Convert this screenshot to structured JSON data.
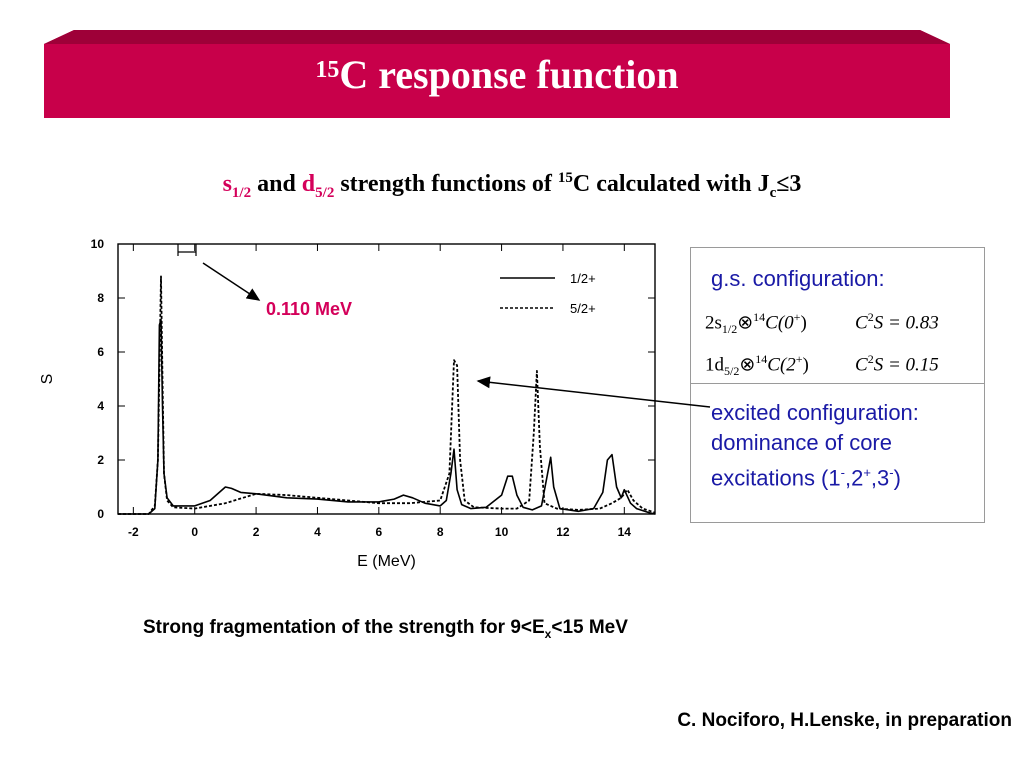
{
  "title": {
    "sup": "15",
    "text": "C response function"
  },
  "subtitle": {
    "s": "s",
    "s_sub": "1/2",
    "and": " and ",
    "d": "d",
    "d_sub": "5/2",
    "mid": " strength functions of ",
    "sup15": "15",
    "tail": "C calculated with  J",
    "jc_sub": "c",
    "leq3": "≤3"
  },
  "annotation": {
    "label": "0.110 MeV"
  },
  "box": {
    "gs_title": "g.s. configuration:",
    "row1_left": "2s",
    "row1_sub": "1/2",
    "row1_core": "⊗",
    "row1_sup": "14",
    "row1_c": "C(0",
    "row1_par": "+",
    "row1_close": ")",
    "row1_cs": "C",
    "row1_cs_sup": "2",
    "row1_cs_val": "S = 0.83",
    "row2_left": "1d",
    "row2_sub": "5/2",
    "row2_core": "⊗",
    "row2_sup": "14",
    "row2_c": "C(2",
    "row2_par": "+",
    "row2_close": ")",
    "row2_cs": "C",
    "row2_cs_sup": "2",
    "row2_cs_val": "S = 0.15",
    "exc_line1": "excited configuration:",
    "exc_line2": "dominance of core",
    "exc_line3_a": "excitations (1",
    "m1": "-",
    "exc_line3_b": ",2",
    "p2": "+",
    "exc_line3_c": ",3",
    "m3": "-",
    "exc_line3_d": ")"
  },
  "fragmentation": {
    "a": "Strong fragmentation of the strength for 9<E",
    "sub": "x",
    "b": "<15 MeV"
  },
  "credit": "C. Nociforo, H.Lenske, in preparation",
  "colors": {
    "banner": "#c8004a",
    "accent": "#d4005a",
    "blue": "#1a1aa6"
  },
  "chart_data": {
    "type": "line",
    "xlabel": "E (MeV)",
    "ylabel": "S",
    "xlim": [
      -2.5,
      15
    ],
    "ylim": [
      0,
      10
    ],
    "xticks": [
      -2,
      0,
      2,
      4,
      6,
      8,
      10,
      12,
      14
    ],
    "yticks": [
      0,
      2,
      4,
      6,
      8,
      10
    ],
    "legend_position": "top-right",
    "series": [
      {
        "name": "1/2+",
        "style": "solid",
        "x": [
          -2.5,
          -1.5,
          -1.3,
          -1.2,
          -1.15,
          -1.1,
          -1.05,
          -1.0,
          -0.9,
          -0.7,
          0,
          0.5,
          0.8,
          1.0,
          1.2,
          1.5,
          2,
          3,
          4,
          5,
          6,
          6.5,
          6.8,
          7.1,
          7.5,
          8.0,
          8.2,
          8.35,
          8.45,
          8.55,
          8.7,
          9.0,
          9.5,
          10.0,
          10.2,
          10.35,
          10.5,
          10.7,
          11.0,
          11.3,
          11.5,
          11.6,
          11.7,
          11.9,
          12.5,
          13.0,
          13.3,
          13.45,
          13.6,
          13.75,
          13.9,
          14.0,
          14.2,
          14.4,
          14.8,
          15.0
        ],
        "y": [
          0,
          0,
          0.2,
          2.0,
          7.0,
          7.2,
          4.0,
          1.5,
          0.6,
          0.3,
          0.3,
          0.5,
          0.8,
          1.0,
          0.95,
          0.8,
          0.75,
          0.6,
          0.55,
          0.45,
          0.45,
          0.55,
          0.7,
          0.6,
          0.4,
          0.3,
          0.5,
          1.5,
          2.4,
          0.9,
          0.35,
          0.2,
          0.25,
          0.7,
          1.4,
          1.4,
          0.7,
          0.25,
          0.15,
          0.3,
          1.5,
          2.1,
          1.0,
          0.2,
          0.1,
          0.2,
          0.8,
          2.0,
          2.2,
          1.0,
          0.6,
          0.9,
          0.4,
          0.2,
          0.05,
          0
        ]
      },
      {
        "name": "5/2+",
        "style": "dashed",
        "x": [
          -2.5,
          -1.5,
          -1.3,
          -1.2,
          -1.1,
          -1.05,
          -1.0,
          -0.9,
          -0.7,
          0,
          1,
          2,
          3,
          4,
          5,
          6,
          7,
          8.0,
          8.3,
          8.45,
          8.55,
          8.65,
          8.8,
          9.1,
          10,
          10.5,
          10.9,
          11.05,
          11.15,
          11.25,
          11.4,
          11.8,
          12.5,
          13.2,
          13.6,
          13.9,
          14.1,
          14.3,
          14.6,
          15.0
        ],
        "y": [
          0,
          0,
          0.3,
          2.0,
          8.8,
          5.0,
          1.5,
          0.5,
          0.25,
          0.2,
          0.4,
          0.75,
          0.7,
          0.6,
          0.5,
          0.4,
          0.4,
          0.5,
          1.5,
          5.7,
          5.5,
          2.0,
          0.5,
          0.25,
          0.2,
          0.2,
          0.5,
          3.0,
          5.3,
          2.5,
          0.4,
          0.2,
          0.15,
          0.2,
          0.4,
          0.6,
          0.9,
          0.5,
          0.2,
          0.05
        ]
      }
    ]
  }
}
